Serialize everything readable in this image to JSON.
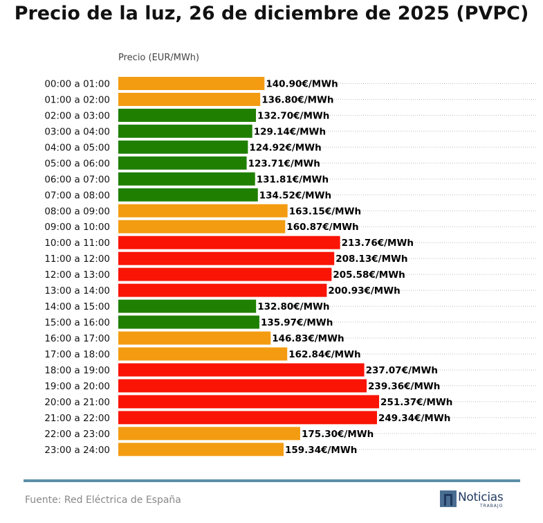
{
  "title": "Precio de la luz, 26 de diciembre de 2025 (PVPC)",
  "source": "Fuente: Red Eléctrica de España",
  "logo": {
    "name": "Noticias",
    "sub": "TRABAJO"
  },
  "colors": {
    "low": "#1f7f00",
    "mid": "#f39c12",
    "high": "#f91405",
    "logo": "#1f3a5f",
    "rule": "#5b8fa8"
  },
  "chart_data": {
    "type": "bar",
    "orientation": "horizontal",
    "title": "Precio de la luz, 26 de diciembre de 2025 (PVPC)",
    "xlabel": "Precio (EUR/MWh)",
    "ylabel": "",
    "grid": "horizontal dotted",
    "categories": [
      "00:00 a 01:00",
      "01:00 a 02:00",
      "02:00 a 03:00",
      "03:00 a 04:00",
      "04:00 a 05:00",
      "05:00 a 06:00",
      "06:00 a 07:00",
      "07:00 a 08:00",
      "08:00 a 09:00",
      "09:00 a 10:00",
      "10:00 a 11:00",
      "11:00 a 12:00",
      "12:00 a 13:00",
      "13:00 a 14:00",
      "14:00 a 15:00",
      "15:00 a 16:00",
      "16:00 a 17:00",
      "17:00 a 18:00",
      "18:00 a 19:00",
      "19:00 a 20:00",
      "20:00 a 21:00",
      "21:00 a 22:00",
      "22:00 a 23:00",
      "23:00 a 24:00"
    ],
    "values": [
      140.9,
      136.8,
      132.7,
      129.14,
      124.92,
      123.71,
      131.81,
      134.52,
      163.15,
      160.87,
      213.76,
      208.13,
      205.58,
      200.93,
      132.8,
      135.97,
      146.83,
      162.84,
      237.07,
      239.36,
      251.37,
      249.34,
      175.3,
      159.34
    ],
    "labels": [
      "140.90€/MWh",
      "136.80€/MWh",
      "132.70€/MWh",
      "129.14€/MWh",
      "124.92€/MWh",
      "123.71€/MWh",
      "131.81€/MWh",
      "134.52€/MWh",
      "163.15€/MWh",
      "160.87€/MWh",
      "213.76€/MWh",
      "208.13€/MWh",
      "205.58€/MWh",
      "200.93€/MWh",
      "132.80€/MWh",
      "135.97€/MWh",
      "146.83€/MWh",
      "162.84€/MWh",
      "237.07€/MWh",
      "239.36€/MWh",
      "251.37€/MWh",
      "249.34€/MWh",
      "175.30€/MWh",
      "159.34€/MWh"
    ],
    "bar_colors": [
      "mid",
      "mid",
      "low",
      "low",
      "low",
      "low",
      "low",
      "low",
      "mid",
      "mid",
      "high",
      "high",
      "high",
      "high",
      "low",
      "low",
      "mid",
      "mid",
      "high",
      "high",
      "high",
      "high",
      "mid",
      "mid"
    ],
    "xlim": [
      0,
      270
    ]
  }
}
